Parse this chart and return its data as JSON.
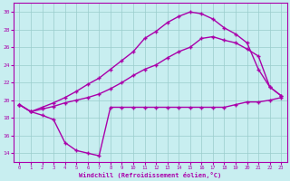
{
  "xlabel": "Windchill (Refroidissement éolien,°C)",
  "background_color": "#c8eef0",
  "line_color": "#aa00aa",
  "grid_color": "#99cccc",
  "xlim": [
    -0.5,
    23.5
  ],
  "ylim": [
    13,
    31
  ],
  "xticks": [
    0,
    1,
    2,
    3,
    4,
    5,
    6,
    7,
    8,
    9,
    10,
    11,
    12,
    13,
    14,
    15,
    16,
    17,
    18,
    19,
    20,
    21,
    22,
    23
  ],
  "yticks": [
    14,
    16,
    18,
    20,
    22,
    24,
    26,
    28,
    30
  ],
  "line1_x": [
    0,
    1,
    2,
    3,
    4,
    5,
    6,
    7,
    8,
    9,
    10,
    11,
    12,
    13,
    14,
    15,
    16,
    17,
    18,
    19,
    20,
    21,
    22,
    23
  ],
  "line1_y": [
    19.5,
    18.7,
    18.3,
    17.8,
    15.2,
    14.3,
    14.0,
    13.7,
    19.2,
    19.2,
    19.2,
    19.2,
    19.2,
    19.2,
    19.2,
    19.2,
    19.2,
    19.2,
    19.2,
    19.5,
    19.8,
    19.8,
    20.0,
    20.3
  ],
  "line2_x": [
    0,
    1,
    2,
    3,
    4,
    5,
    6,
    7,
    8,
    9,
    10,
    11,
    12,
    13,
    14,
    15,
    16,
    17,
    18,
    19,
    20,
    21,
    22,
    23
  ],
  "line2_y": [
    19.5,
    18.7,
    19.0,
    19.3,
    19.7,
    20.0,
    20.3,
    20.7,
    21.3,
    22.0,
    22.8,
    23.5,
    24.0,
    24.8,
    25.5,
    26.0,
    27.0,
    27.2,
    26.8,
    26.5,
    25.8,
    25.0,
    21.5,
    20.5
  ],
  "line3_x": [
    0,
    1,
    2,
    3,
    4,
    5,
    6,
    7,
    8,
    9,
    10,
    11,
    12,
    13,
    14,
    15,
    16,
    17,
    18,
    19,
    20,
    21,
    22,
    23
  ],
  "line3_y": [
    19.5,
    18.7,
    19.2,
    19.7,
    20.3,
    21.0,
    21.8,
    22.5,
    23.5,
    24.5,
    25.5,
    27.0,
    27.8,
    28.8,
    29.5,
    30.0,
    29.8,
    29.2,
    28.2,
    27.5,
    26.5,
    23.5,
    21.5,
    20.5
  ],
  "marker": "+",
  "markersize": 3,
  "linewidth": 1.0
}
